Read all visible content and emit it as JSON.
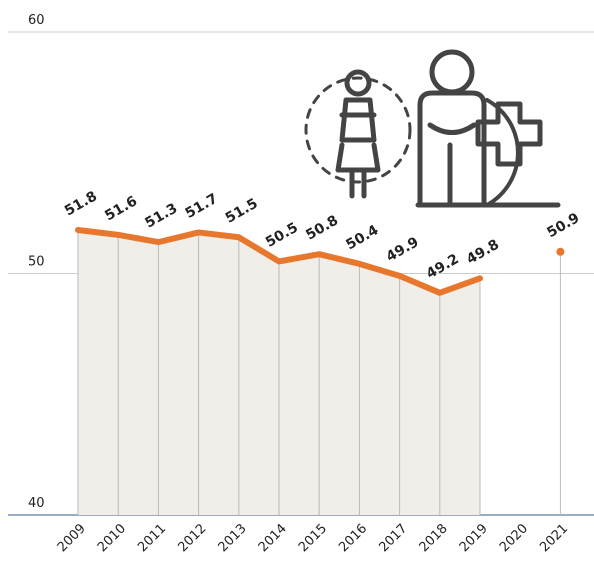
{
  "chart_data": {
    "type": "line",
    "categories": [
      "2009",
      "2010",
      "2011",
      "2012",
      "2013",
      "2014",
      "2015",
      "2016",
      "2017",
      "2018",
      "2019",
      "2020",
      "2021"
    ],
    "series": [
      {
        "color": "#e8772e",
        "values": [
          51.8,
          51.6,
          51.3,
          51.7,
          51.5,
          50.5,
          50.8,
          50.4,
          49.9,
          49.2,
          49.8,
          null,
          50.9
        ]
      }
    ],
    "area_color": "#f1eee9",
    "ylim": [
      40,
      60
    ],
    "yticks": [
      40,
      50,
      60
    ],
    "grid": true
  }
}
